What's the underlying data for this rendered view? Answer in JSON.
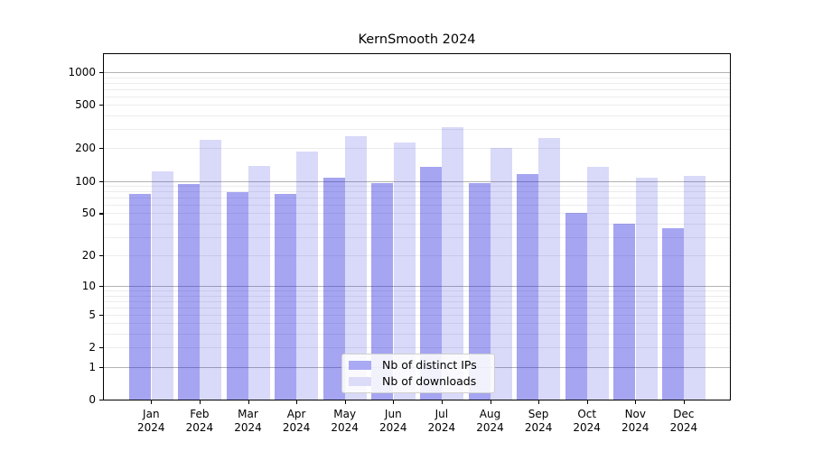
{
  "chart_data": {
    "type": "bar",
    "title": "KernSmooth 2024",
    "categories": [
      "Jan 2024",
      "Feb 2024",
      "Mar 2024",
      "Apr 2024",
      "May 2024",
      "Jun 2024",
      "Jul 2024",
      "Aug 2024",
      "Sep 2024",
      "Oct 2024",
      "Nov 2024",
      "Dec 2024"
    ],
    "x_tick_month": [
      "Jan",
      "Feb",
      "Mar",
      "Apr",
      "May",
      "Jun",
      "Jul",
      "Aug",
      "Sep",
      "Oct",
      "Nov",
      "Dec"
    ],
    "x_tick_year": "2024",
    "series": [
      {
        "name": "Nb of distinct IPs",
        "color": "rgba(30,30,220,0.40)",
        "swatch_color": "#a9a9f4",
        "values": [
          76,
          94,
          78,
          76,
          107,
          95,
          134,
          95,
          115,
          50,
          40,
          36
        ]
      },
      {
        "name": "Nb of downloads",
        "color": "rgba(30,30,220,0.17)",
        "swatch_color": "#dcdcf9",
        "values": [
          122,
          240,
          137,
          185,
          257,
          228,
          310,
          202,
          250,
          135,
          107,
          112
        ]
      }
    ],
    "y_scale": "log1p",
    "y_ticks": [
      0,
      1,
      2,
      5,
      10,
      20,
      50,
      100,
      200,
      500,
      1000
    ],
    "ylim": [
      0,
      1500
    ],
    "grid": true,
    "legend_position": "lower-center",
    "grid_minor_color": "#ececec",
    "grid_major_color": "#b3b3b3"
  }
}
